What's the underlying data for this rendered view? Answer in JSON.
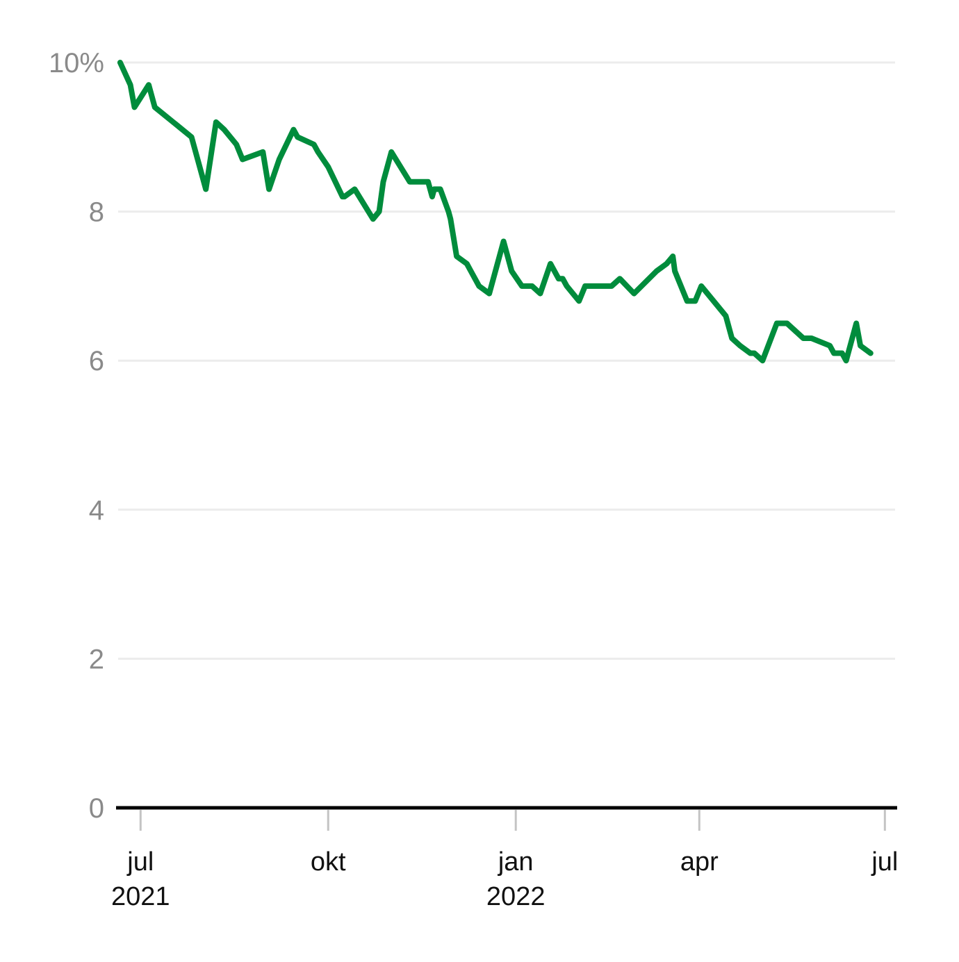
{
  "chart_data": {
    "type": "line",
    "title": "",
    "xlabel": "",
    "ylabel": "",
    "y_unit_suffix": "%",
    "ylim": [
      0,
      10
    ],
    "y_ticks": [
      {
        "value": 0,
        "label": "0"
      },
      {
        "value": 2,
        "label": "2"
      },
      {
        "value": 4,
        "label": "4"
      },
      {
        "value": 6,
        "label": "6"
      },
      {
        "value": 8,
        "label": "8"
      },
      {
        "value": 10,
        "label": "10%"
      }
    ],
    "xlim": [
      "2021-06-20",
      "2022-07-06"
    ],
    "x_ticks": [
      {
        "date": "2021-07-01",
        "label": "jul",
        "sublabel": "2021"
      },
      {
        "date": "2021-10-01",
        "label": "okt",
        "sublabel": ""
      },
      {
        "date": "2022-01-01",
        "label": "jan",
        "sublabel": "2022"
      },
      {
        "date": "2022-04-01",
        "label": "apr",
        "sublabel": ""
      },
      {
        "date": "2022-07-01",
        "label": "jul",
        "sublabel": ""
      }
    ],
    "grid": true,
    "legend": "none",
    "colors": {
      "series": "#008c3c",
      "grid": "#ececec",
      "baseline": "#000000",
      "y_tick_text": "#8a8a8a",
      "x_tick_text": "#111111"
    },
    "series": [
      {
        "x": [
          "2021-06-21",
          "2021-06-26",
          "2021-06-28",
          "2021-07-05",
          "2021-07-08",
          "2021-07-17",
          "2021-07-26",
          "2021-08-02",
          "2021-08-07",
          "2021-08-11",
          "2021-08-17",
          "2021-08-20",
          "2021-08-30",
          "2021-09-02",
          "2021-09-07",
          "2021-09-14",
          "2021-09-16",
          "2021-09-24",
          "2021-09-26",
          "2021-10-01",
          "2021-10-08",
          "2021-10-09",
          "2021-10-14",
          "2021-10-23",
          "2021-10-26",
          "2021-10-28",
          "2021-11-01",
          "2021-11-10",
          "2021-11-14",
          "2021-11-19",
          "2021-11-21",
          "2021-11-22",
          "2021-11-25",
          "2021-11-29",
          "2021-11-30",
          "2021-12-03",
          "2021-12-08",
          "2021-12-10",
          "2021-12-14",
          "2021-12-19",
          "2021-12-26",
          "2021-12-30",
          "2022-01-04",
          "2022-01-09",
          "2022-01-13",
          "2022-01-18",
          "2022-01-22",
          "2022-01-24",
          "2022-01-26",
          "2022-02-01",
          "2022-02-04",
          "2022-02-07",
          "2022-02-14",
          "2022-02-17",
          "2022-02-21",
          "2022-02-28",
          "2022-03-11",
          "2022-03-16",
          "2022-03-19",
          "2022-03-20",
          "2022-03-26",
          "2022-03-30",
          "2022-04-02",
          "2022-04-14",
          "2022-04-17",
          "2022-04-21",
          "2022-04-26",
          "2022-04-28",
          "2022-05-02",
          "2022-05-09",
          "2022-05-14",
          "2022-05-22",
          "2022-05-26",
          "2022-06-04",
          "2022-06-06",
          "2022-06-10",
          "2022-06-12",
          "2022-06-17",
          "2022-06-19",
          "2022-06-24"
        ],
        "values": [
          10.0,
          9.7,
          9.4,
          9.7,
          9.4,
          9.2,
          9.0,
          8.3,
          9.2,
          9.1,
          8.9,
          8.7,
          8.8,
          8.3,
          8.7,
          9.1,
          9.0,
          8.9,
          8.8,
          8.6,
          8.2,
          8.2,
          8.3,
          7.9,
          8.0,
          8.4,
          8.8,
          8.4,
          8.4,
          8.4,
          8.2,
          8.3,
          8.3,
          8.0,
          7.9,
          7.4,
          7.3,
          7.2,
          7.0,
          6.9,
          7.6,
          7.2,
          7.0,
          7.0,
          6.9,
          7.3,
          7.1,
          7.1,
          7.0,
          6.8,
          7.0,
          7.0,
          7.0,
          7.0,
          7.1,
          6.9,
          7.2,
          7.3,
          7.4,
          7.2,
          6.8,
          6.8,
          7.0,
          6.6,
          6.3,
          6.2,
          6.1,
          6.1,
          6.0,
          6.5,
          6.5,
          6.3,
          6.3,
          6.2,
          6.1,
          6.1,
          6.0,
          6.5,
          6.2,
          6.1
        ]
      }
    ]
  }
}
